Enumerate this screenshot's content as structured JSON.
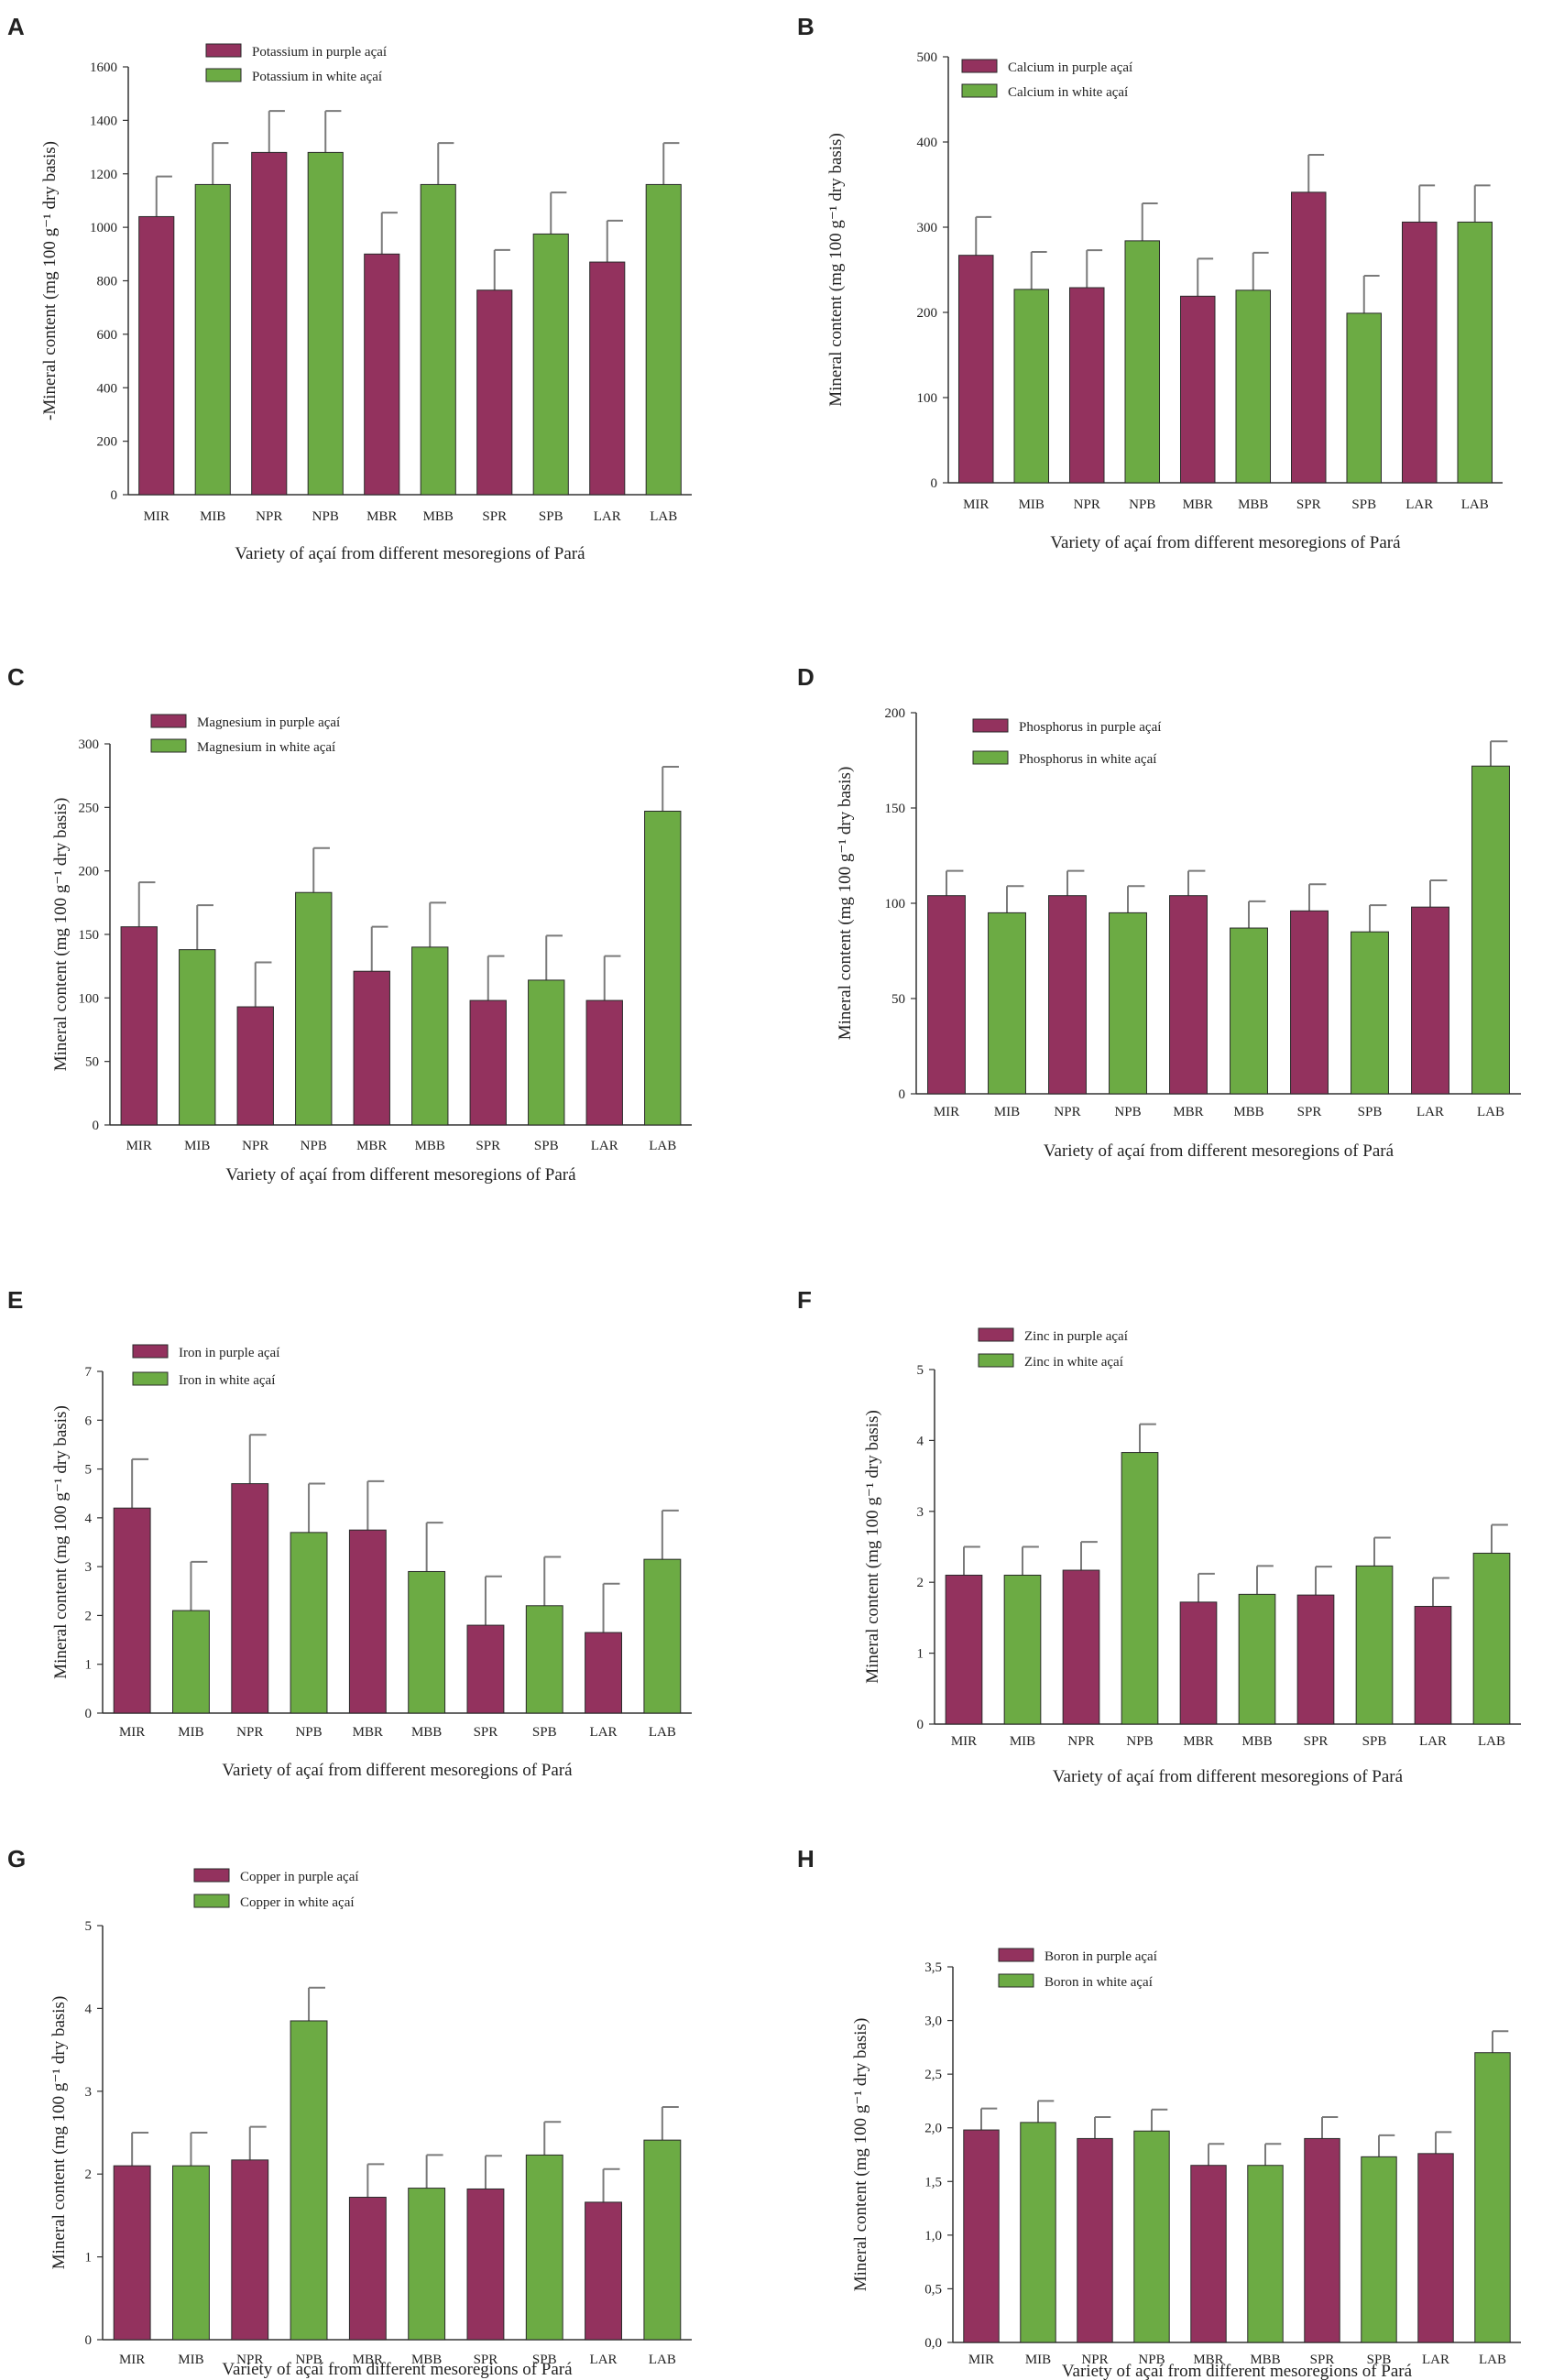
{
  "figure": {
    "colors": {
      "purple": "#93325e",
      "white": "#6cab44",
      "axis": "#333333",
      "error_bar": "#7a7a7a"
    }
  },
  "chart_data": [
    {
      "panel": "A",
      "type": "bar",
      "ylabel": "-Mineral content (mg 100 g⁻¹ dry basis)",
      "xlabel": "Variety of açaí from different mesoregions of Pará",
      "ylim": [
        0,
        1600
      ],
      "yticks": [
        "0",
        "200",
        "400",
        "600",
        "800",
        "1000",
        "1200",
        "1400",
        "1600"
      ],
      "categories": [
        "MIR",
        "MIB",
        "NPR",
        "NPB",
        "MBR",
        "MBB",
        "SPR",
        "SPB",
        "LAR",
        "LAB"
      ],
      "values": [
        1040,
        1160,
        1280,
        1280,
        900,
        1160,
        765,
        975,
        870,
        1160
      ],
      "errors": [
        150,
        155,
        155,
        155,
        155,
        155,
        150,
        155,
        155,
        155
      ],
      "groups": [
        "purple",
        "white",
        "purple",
        "white",
        "purple",
        "white",
        "purple",
        "white",
        "purple",
        "white"
      ],
      "legend": [
        "Potassium in purple açaí",
        "Potassium in white açaí"
      ]
    },
    {
      "panel": "B",
      "type": "bar",
      "ylabel": "Mineral content (mg 100 g⁻¹ dry basis)",
      "xlabel": "Variety of açaí from different mesoregions of Pará",
      "ylim": [
        0,
        500
      ],
      "yticks": [
        "0",
        "100",
        "200",
        "300",
        "400",
        "500"
      ],
      "categories": [
        "MIR",
        "MIB",
        "NPR",
        "NPB",
        "MBR",
        "MBB",
        "SPR",
        "SPB",
        "LAR",
        "LAB"
      ],
      "values": [
        267,
        227,
        229,
        284,
        219,
        226,
        341,
        199,
        306,
        306
      ],
      "errors": [
        45,
        44,
        44,
        44,
        44,
        44,
        44,
        44,
        43,
        43
      ],
      "groups": [
        "purple",
        "white",
        "purple",
        "white",
        "purple",
        "white",
        "purple",
        "white",
        "purple",
        "white"
      ],
      "legend": [
        "Calcium in purple açaí",
        "Calcium in white açaí"
      ]
    },
    {
      "panel": "C",
      "type": "bar",
      "ylabel": "Mineral content (mg 100 g⁻¹ dry basis)",
      "xlabel": "Variety of açaí from different mesoregions of Pará",
      "ylim": [
        0,
        300
      ],
      "yticks": [
        "0",
        "50",
        "100",
        "150",
        "200",
        "250",
        "300"
      ],
      "categories": [
        "MIR",
        "MIB",
        "NPR",
        "NPB",
        "MBR",
        "MBB",
        "SPR",
        "SPB",
        "LAR",
        "LAB"
      ],
      "values": [
        156,
        138,
        93,
        183,
        121,
        140,
        98,
        114,
        98,
        247
      ],
      "errors": [
        35,
        35,
        35,
        35,
        35,
        35,
        35,
        35,
        35,
        35
      ],
      "groups": [
        "purple",
        "white",
        "purple",
        "white",
        "purple",
        "white",
        "purple",
        "white",
        "purple",
        "white"
      ],
      "legend": [
        "Magnesium in purple açaí",
        "Magnesium in white açaí"
      ]
    },
    {
      "panel": "D",
      "type": "bar",
      "ylabel": "Mineral content (mg 100 g⁻¹ dry basis)",
      "xlabel": "Variety of açaí from different mesoregions of Pará",
      "ylim": [
        0,
        200
      ],
      "yticks": [
        "0",
        "50",
        "100",
        "150",
        "200"
      ],
      "categories": [
        "MIR",
        "MIB",
        "NPR",
        "NPB",
        "MBR",
        "MBB",
        "SPR",
        "SPB",
        "LAR",
        "LAB"
      ],
      "values": [
        104,
        95,
        104,
        95,
        104,
        87,
        96,
        85,
        98,
        172
      ],
      "errors": [
        13,
        14,
        13,
        14,
        13,
        14,
        14,
        14,
        14,
        13
      ],
      "groups": [
        "purple",
        "white",
        "purple",
        "white",
        "purple",
        "white",
        "purple",
        "white",
        "purple",
        "white"
      ],
      "legend": [
        "Phosphorus in purple açaí",
        "Phosphorus in white açaí"
      ]
    },
    {
      "panel": "E",
      "type": "bar",
      "ylabel": "Mineral content (mg 100 g⁻¹ dry basis)",
      "xlabel": "Variety of açaí from different mesoregions of Pará",
      "ylim": [
        0,
        7
      ],
      "yticks": [
        "0",
        "1",
        "2",
        "3",
        "4",
        "5",
        "6",
        "7"
      ],
      "categories": [
        "MIR",
        "MIB",
        "NPR",
        "NPB",
        "MBR",
        "MBB",
        "SPR",
        "SPB",
        "LAR",
        "LAB"
      ],
      "values": [
        4.2,
        2.1,
        4.7,
        3.7,
        3.75,
        2.9,
        1.8,
        2.2,
        1.65,
        3.15
      ],
      "errors": [
        1.0,
        1.0,
        1.0,
        1.0,
        1.0,
        1.0,
        1.0,
        1.0,
        1.0,
        1.0
      ],
      "groups": [
        "purple",
        "white",
        "purple",
        "white",
        "purple",
        "white",
        "purple",
        "white",
        "purple",
        "white"
      ],
      "legend": [
        "Iron in purple açaí",
        "Iron in white açaí"
      ]
    },
    {
      "panel": "F",
      "type": "bar",
      "ylabel": "Mineral content (mg 100 g⁻¹ dry basis)",
      "xlabel": "Variety of açaí from different mesoregions of Pará",
      "ylim": [
        0,
        5
      ],
      "yticks": [
        "0",
        "1",
        "2",
        "3",
        "4",
        "5"
      ],
      "categories": [
        "MIR",
        "MIB",
        "NPR",
        "NPB",
        "MBR",
        "MBB",
        "SPR",
        "SPB",
        "LAR",
        "LAB"
      ],
      "values": [
        2.1,
        2.1,
        2.17,
        3.83,
        1.72,
        1.83,
        1.82,
        2.23,
        1.66,
        2.41
      ],
      "errors": [
        0.4,
        0.4,
        0.4,
        0.4,
        0.4,
        0.4,
        0.4,
        0.4,
        0.4,
        0.4
      ],
      "groups": [
        "purple",
        "white",
        "purple",
        "white",
        "purple",
        "white",
        "purple",
        "white",
        "purple",
        "white"
      ],
      "legend": [
        "Zinc in purple açaí",
        "Zinc in white açaí"
      ]
    },
    {
      "panel": "G",
      "type": "bar",
      "ylabel": "Mineral content (mg 100 g⁻¹ dry basis)",
      "xlabel": "Variety of açaí from different mesoregions of Pará",
      "ylim": [
        0,
        5
      ],
      "yticks": [
        "0",
        "1",
        "2",
        "3",
        "4",
        "5"
      ],
      "categories": [
        "MIR",
        "MIB",
        "NPR",
        "NPB",
        "MBR",
        "MBB",
        "SPR",
        "SPB",
        "LAR",
        "LAB"
      ],
      "values": [
        2.1,
        2.1,
        2.17,
        3.85,
        1.72,
        1.83,
        1.82,
        2.23,
        1.66,
        2.41
      ],
      "errors": [
        0.4,
        0.4,
        0.4,
        0.4,
        0.4,
        0.4,
        0.4,
        0.4,
        0.4,
        0.4
      ],
      "groups": [
        "purple",
        "white",
        "purple",
        "white",
        "purple",
        "white",
        "purple",
        "white",
        "purple",
        "white"
      ],
      "legend": [
        "Copper in purple açaí",
        "Copper in white açaí"
      ]
    },
    {
      "panel": "H",
      "type": "bar",
      "ylabel": "Mineral content (mg 100 g⁻¹ dry basis)",
      "xlabel": "Variety of açaí from different mesoregions of Pará",
      "ylim": [
        0,
        3.5
      ],
      "yticks": [
        "0,0",
        "0,5",
        "1,0",
        "1,5",
        "2,0",
        "2,5",
        "3,0",
        "3,5"
      ],
      "categories": [
        "MIR",
        "MIB",
        "NPR",
        "NPB",
        "MBR",
        "MBB",
        "SPR",
        "SPB",
        "LAR",
        "LAB"
      ],
      "values": [
        1.98,
        2.05,
        1.9,
        1.97,
        1.65,
        1.65,
        1.9,
        1.73,
        1.76,
        2.7
      ],
      "errors": [
        0.2,
        0.2,
        0.2,
        0.2,
        0.2,
        0.2,
        0.2,
        0.2,
        0.2,
        0.2
      ],
      "groups": [
        "purple",
        "white",
        "purple",
        "white",
        "purple",
        "white",
        "purple",
        "white",
        "purple",
        "white"
      ],
      "legend": [
        "Boron in purple açaí",
        "Boron in white açaí"
      ]
    }
  ]
}
